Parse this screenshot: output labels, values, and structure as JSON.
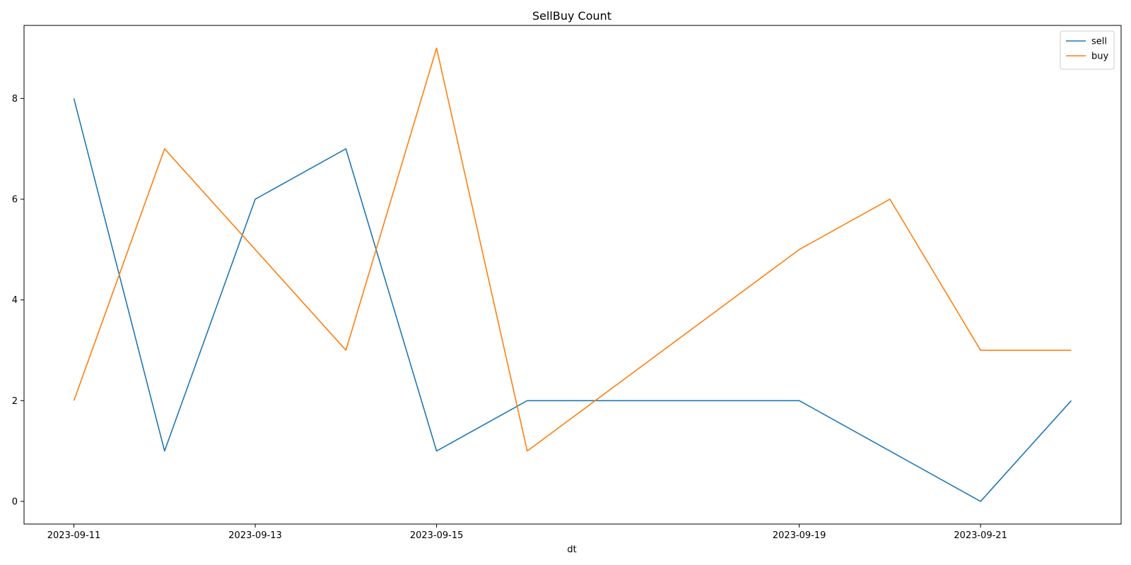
{
  "chart_data": {
    "type": "line",
    "title": "SellBuy Count",
    "xlabel": "dt",
    "ylabel": "",
    "x": [
      "2023-09-11",
      "2023-09-12",
      "2023-09-13",
      "2023-09-14",
      "2023-09-15",
      "2023-09-16",
      "2023-09-19",
      "2023-09-20",
      "2023-09-21",
      "2023-09-22"
    ],
    "x_tick_labels": [
      "2023-09-11",
      "2023-09-13",
      "2023-09-15",
      "2023-09-19",
      "2023-09-21"
    ],
    "series": [
      {
        "name": "sell",
        "color": "#1f77b4",
        "values": [
          8,
          1,
          6,
          7,
          1,
          2,
          2,
          1,
          0,
          2
        ]
      },
      {
        "name": "buy",
        "color": "#ff7f0e",
        "values": [
          2,
          7,
          5,
          3,
          9,
          1,
          5,
          6,
          3,
          3
        ]
      }
    ],
    "ylim": [
      -0.45,
      9.45
    ],
    "y_ticks": [
      0,
      2,
      4,
      6,
      8
    ],
    "grid": false,
    "legend_position": "top-right"
  }
}
